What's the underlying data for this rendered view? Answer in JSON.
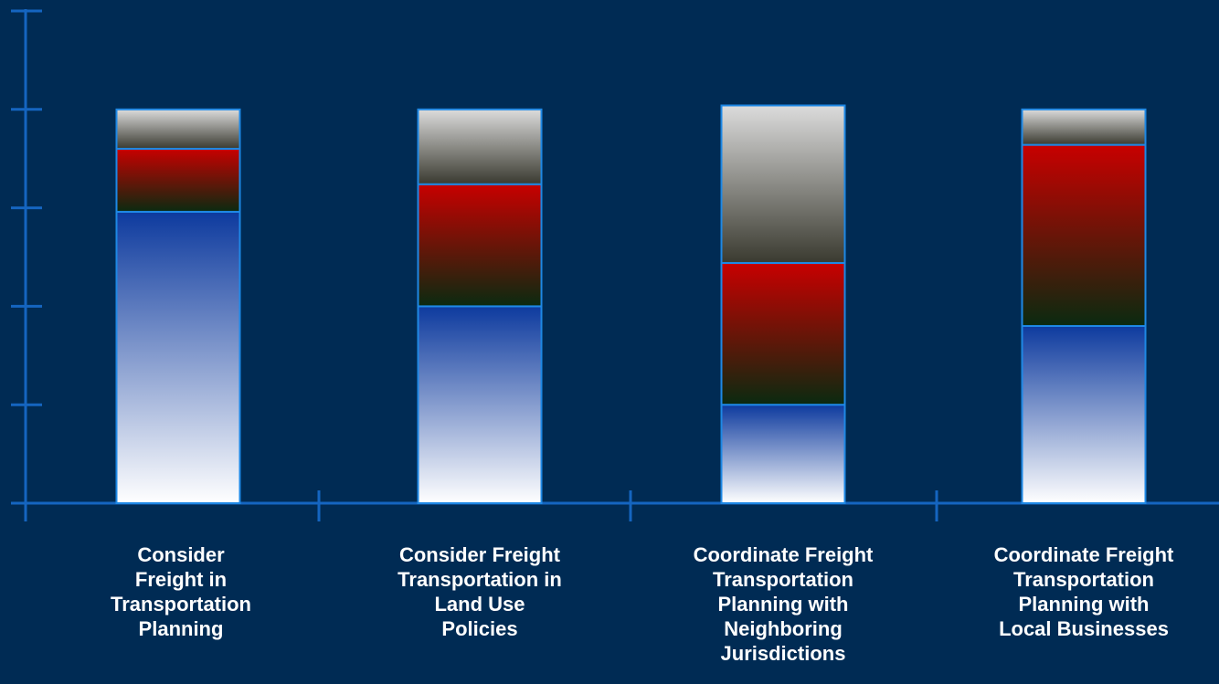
{
  "chart_data": {
    "type": "bar",
    "stacked": true,
    "categories": [
      "Consider\nFreight in\nTransportation\nPlanning",
      "Consider Freight\nTransportation in\nLand Use\nPolicies",
      "Coordinate Freight\nTransportation\nPlanning with\nNeighboring\nJurisdictions",
      "Coordinate Freight\nTransportation\nPlanning with\nLocal Businesses"
    ],
    "series": [
      {
        "values": [
          74,
          50,
          25,
          45
        ]
      },
      {
        "values": [
          16,
          31,
          36,
          46
        ]
      },
      {
        "values": [
          10,
          19,
          40,
          9
        ]
      }
    ],
    "ylim": [
      0,
      125
    ],
    "yticks": [
      0,
      25,
      50,
      75,
      100,
      125
    ],
    "grid": false,
    "legend": "none",
    "colors": {
      "background": "#002b54",
      "axis": "#1565c0",
      "bar_outline": "#1e88e5",
      "series_gradients": [
        [
          "#0d3a9e",
          "#ffffff"
        ],
        [
          "#c80000",
          "#0a2a10"
        ],
        [
          "#dcdcdc",
          "#3a3a30"
        ]
      ],
      "label_text": "#ffffff"
    }
  }
}
